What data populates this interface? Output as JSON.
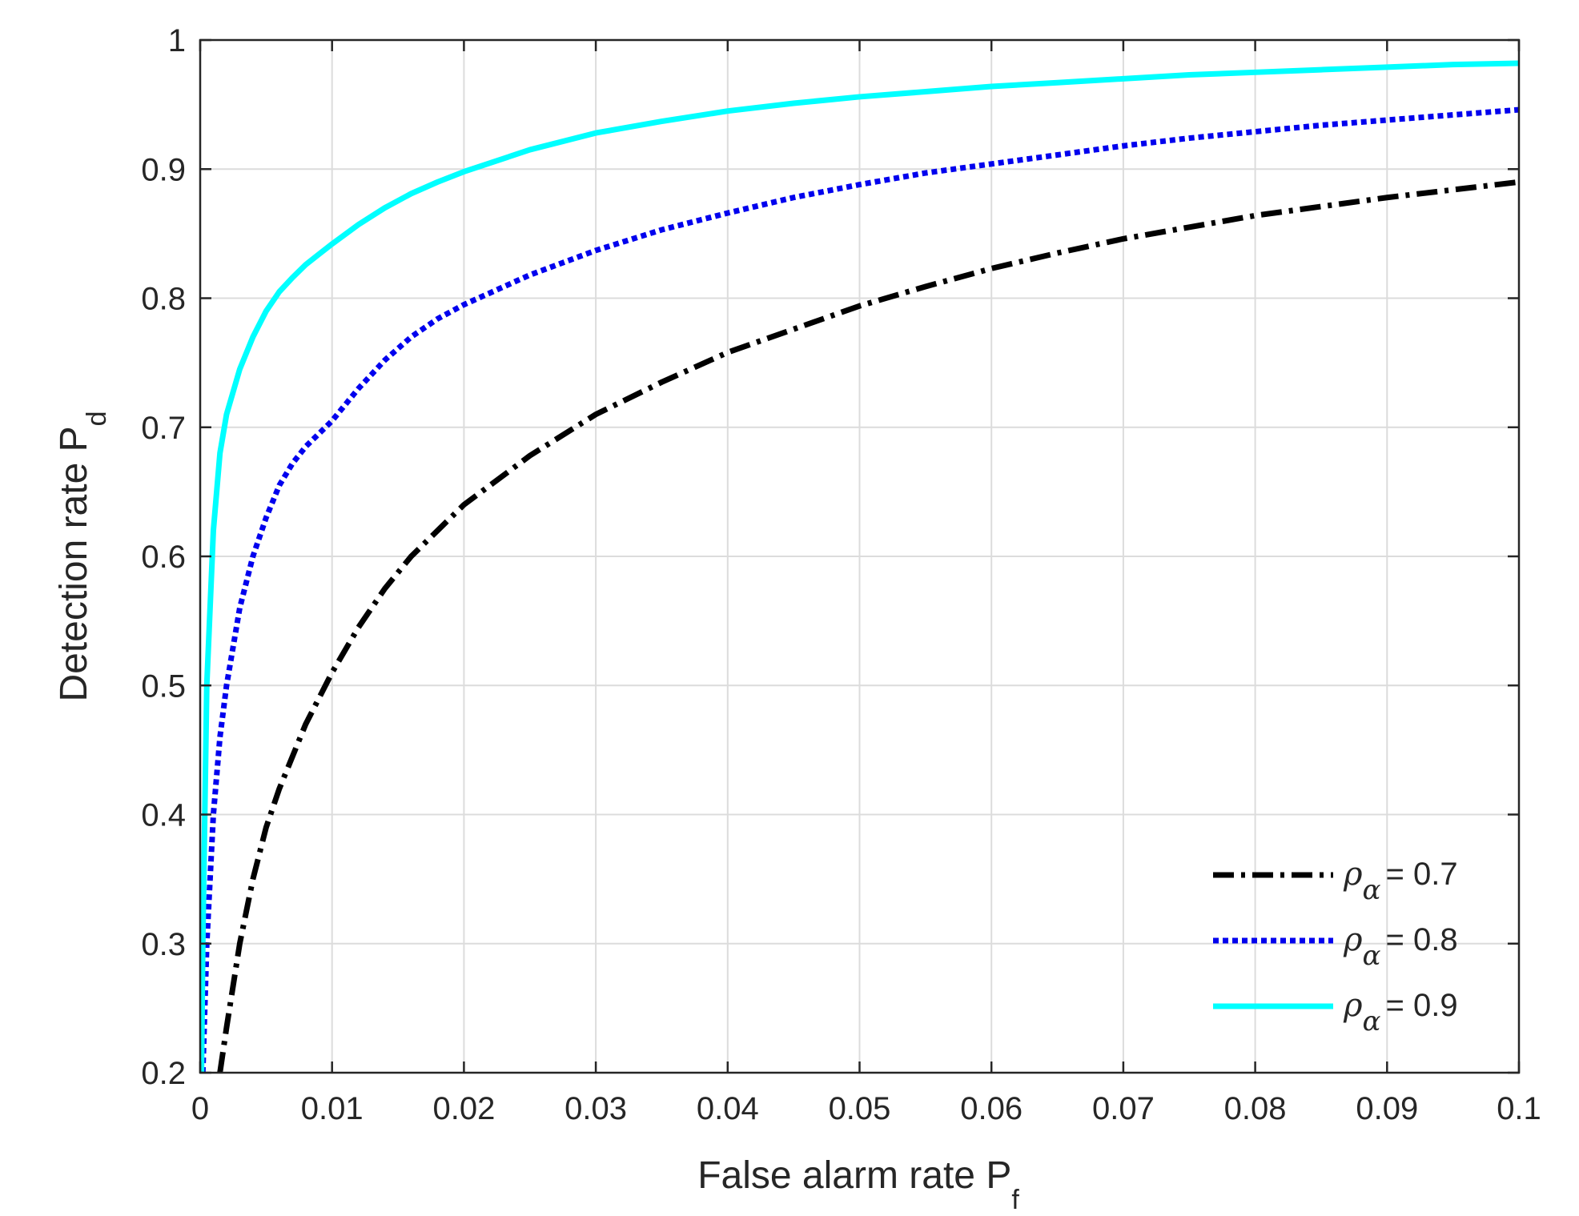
{
  "chart_data": {
    "type": "line",
    "title": "",
    "xlabel": "False alarm rate P",
    "xlabel_sub": "f",
    "ylabel": "Detection rate P",
    "ylabel_sub": "d",
    "xlim": [
      0,
      0.1
    ],
    "ylim": [
      0.2,
      1
    ],
    "grid": true,
    "legend_position": "bottom-right",
    "x_ticks": [
      0,
      0.01,
      0.02,
      0.03,
      0.04,
      0.05,
      0.06,
      0.07,
      0.08,
      0.09,
      0.1
    ],
    "x_tick_labels": [
      "0",
      "0.01",
      "0.02",
      "0.03",
      "0.04",
      "0.05",
      "0.06",
      "0.07",
      "0.08",
      "0.09",
      "0.1"
    ],
    "y_ticks": [
      0.2,
      0.3,
      0.4,
      0.5,
      0.6,
      0.7,
      0.8,
      0.9,
      1
    ],
    "y_tick_labels": [
      "0.2",
      "0.3",
      "0.4",
      "0.5",
      "0.6",
      "0.7",
      "0.8",
      "0.9",
      "1"
    ],
    "series": [
      {
        "legend_symbol": "ρ",
        "legend_sub": "α",
        "legend_value": "= 0.7",
        "color": "#000000",
        "line_style": "dashdot",
        "x": [
          0.0015,
          0.002,
          0.003,
          0.004,
          0.005,
          0.006,
          0.007,
          0.008,
          0.009,
          0.01,
          0.012,
          0.014,
          0.016,
          0.018,
          0.02,
          0.025,
          0.03,
          0.035,
          0.04,
          0.045,
          0.05,
          0.055,
          0.06,
          0.065,
          0.07,
          0.075,
          0.08,
          0.085,
          0.09,
          0.095,
          0.1
        ],
        "y": [
          0.2,
          0.235,
          0.3,
          0.35,
          0.39,
          0.42,
          0.445,
          0.47,
          0.49,
          0.51,
          0.545,
          0.575,
          0.6,
          0.62,
          0.64,
          0.678,
          0.71,
          0.735,
          0.758,
          0.776,
          0.794,
          0.809,
          0.823,
          0.835,
          0.846,
          0.855,
          0.864,
          0.871,
          0.878,
          0.884,
          0.89
        ]
      },
      {
        "legend_symbol": "ρ",
        "legend_sub": "α",
        "legend_value": "= 0.8",
        "color": "#0000ee",
        "line_style": "dotted",
        "x": [
          0.0002,
          0.0005,
          0.001,
          0.0015,
          0.002,
          0.003,
          0.004,
          0.005,
          0.006,
          0.007,
          0.008,
          0.009,
          0.01,
          0.012,
          0.014,
          0.016,
          0.018,
          0.02,
          0.025,
          0.03,
          0.035,
          0.04,
          0.045,
          0.05,
          0.055,
          0.06,
          0.065,
          0.07,
          0.075,
          0.08,
          0.085,
          0.09,
          0.095,
          0.1
        ],
        "y": [
          0.2,
          0.3,
          0.4,
          0.46,
          0.5,
          0.56,
          0.6,
          0.63,
          0.655,
          0.672,
          0.685,
          0.695,
          0.705,
          0.73,
          0.752,
          0.77,
          0.784,
          0.795,
          0.818,
          0.837,
          0.853,
          0.866,
          0.878,
          0.888,
          0.897,
          0.904,
          0.911,
          0.918,
          0.924,
          0.929,
          0.934,
          0.938,
          0.942,
          0.946
        ]
      },
      {
        "legend_symbol": "ρ",
        "legend_sub": "α",
        "legend_value": "= 0.9",
        "color": "#00ffff",
        "line_style": "solid",
        "x": [
          0.0001,
          0.0002,
          0.0005,
          0.001,
          0.0015,
          0.002,
          0.003,
          0.004,
          0.005,
          0.006,
          0.007,
          0.008,
          0.009,
          0.01,
          0.012,
          0.014,
          0.016,
          0.018,
          0.02,
          0.025,
          0.03,
          0.035,
          0.04,
          0.045,
          0.05,
          0.055,
          0.06,
          0.065,
          0.07,
          0.075,
          0.08,
          0.085,
          0.09,
          0.095,
          0.1
        ],
        "y": [
          0.2,
          0.3,
          0.5,
          0.62,
          0.68,
          0.71,
          0.745,
          0.77,
          0.79,
          0.805,
          0.816,
          0.826,
          0.834,
          0.842,
          0.857,
          0.87,
          0.881,
          0.89,
          0.898,
          0.915,
          0.928,
          0.937,
          0.945,
          0.951,
          0.956,
          0.96,
          0.964,
          0.967,
          0.97,
          0.973,
          0.975,
          0.977,
          0.979,
          0.981,
          0.982
        ]
      }
    ]
  }
}
